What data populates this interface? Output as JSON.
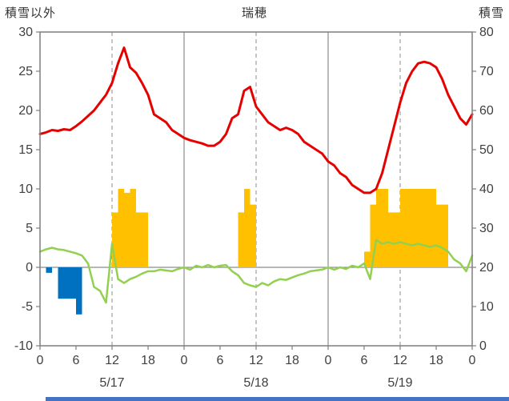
{
  "header": {
    "left_axis_title": "積雪以外",
    "station_title": "瑞穂",
    "right_axis_title": "積雪"
  },
  "chart_data": {
    "type": "line",
    "title": "瑞穂",
    "left_axis": {
      "label": "積雪以外",
      "min": -10,
      "max": 30,
      "ticks": [
        30,
        25,
        20,
        15,
        10,
        5,
        0,
        -5,
        -10
      ]
    },
    "right_axis": {
      "label": "積雪",
      "min": 0,
      "max": 80,
      "ticks": [
        80,
        70,
        60,
        50,
        40,
        30,
        20,
        10,
        0
      ]
    },
    "x_axis": {
      "min": 0,
      "max": 72,
      "tick_hours": [
        0,
        6,
        12,
        18,
        24,
        30,
        36,
        42,
        48,
        54,
        60,
        66,
        72
      ],
      "tick_labels": [
        "0",
        "6",
        "12",
        "18",
        "0",
        "6",
        "12",
        "18",
        "0",
        "6",
        "12",
        "18",
        "0"
      ],
      "day_labels": [
        {
          "label": "5/17",
          "hour": 12
        },
        {
          "label": "5/18",
          "hour": 36
        },
        {
          "label": "5/19",
          "hour": 60
        }
      ]
    },
    "grid": {
      "dashed_vertical_hours": [
        12,
        36,
        60
      ],
      "solid_vertical_hours": [
        24,
        48
      ],
      "zero_line": true
    },
    "colors": {
      "red_line": "#e60000",
      "green_line": "#92d050",
      "yellow_bar": "#ffc000",
      "blue_bar": "#0070c0",
      "grid": "#8c8c8c",
      "frame": "#7f7f7f",
      "text": "#404040",
      "accent_strip": "#4472c4"
    },
    "series": [
      {
        "name": "blue-bars",
        "type": "bar",
        "axis": "left",
        "color": "#0070c0",
        "values": {
          "1": -0.7,
          "3": -4,
          "4": -4,
          "5": -4,
          "6": -6
        }
      },
      {
        "name": "yellow-bars",
        "type": "bar",
        "axis": "left",
        "color": "#ffc000",
        "values": {
          "12": 7,
          "13": 10,
          "14": 9.5,
          "15": 10,
          "16": 7,
          "17": 7,
          "33": 7,
          "34": 10,
          "35": 8,
          "54": 2,
          "55": 8,
          "56": 10,
          "57": 10,
          "58": 7,
          "59": 7,
          "60": 10,
          "61": 10,
          "62": 10,
          "63": 10,
          "64": 10,
          "65": 10,
          "66": 8,
          "67": 8
        }
      },
      {
        "name": "green-line",
        "type": "line",
        "axis": "left",
        "color": "#92d050",
        "width": 2.5,
        "values": [
          2,
          2.3,
          2.5,
          2.3,
          2.2,
          2,
          1.8,
          1.5,
          0.5,
          -2.5,
          -3,
          -4.5,
          3,
          -1.5,
          -2,
          -1.5,
          -1.2,
          -0.8,
          -0.5,
          -0.5,
          -0.3,
          -0.4,
          -0.5,
          -0.2,
          0,
          -0.3,
          0.2,
          0,
          0.3,
          0,
          0.2,
          0.3,
          -0.5,
          -1,
          -2,
          -2.3,
          -2.5,
          -2,
          -2.3,
          -1.8,
          -1.5,
          -1.6,
          -1.3,
          -1,
          -0.8,
          -0.5,
          -0.4,
          -0.3,
          0,
          -0.3,
          0,
          -0.2,
          0.2,
          0,
          0.5,
          -1.5,
          3.5,
          3,
          3.2,
          3,
          3.2,
          3,
          2.8,
          3,
          2.8,
          2.6,
          2.8,
          2.5,
          2,
          1,
          0.5,
          -0.5,
          1.5
        ]
      },
      {
        "name": "red-line",
        "type": "line",
        "axis": "left",
        "color": "#e60000",
        "width": 3,
        "values": [
          17,
          17.2,
          17.5,
          17.4,
          17.6,
          17.5,
          18,
          18.6,
          19.3,
          20,
          21,
          22,
          23.5,
          26,
          28,
          25.5,
          24.8,
          23.5,
          22,
          19.5,
          19,
          18.5,
          17.5,
          17,
          16.5,
          16.2,
          16,
          15.8,
          15.5,
          15.5,
          16,
          17,
          19,
          19.5,
          22.5,
          23,
          20.5,
          19.5,
          18.5,
          18,
          17.5,
          17.8,
          17.5,
          17,
          16,
          15.5,
          15,
          14.5,
          13.5,
          13,
          12,
          11.5,
          10.5,
          10,
          9.5,
          9.5,
          10,
          12,
          15,
          18,
          21,
          23.5,
          25,
          26,
          26.2,
          26,
          25.5,
          24,
          22,
          20.5,
          19,
          18.2,
          19.5
        ]
      }
    ]
  }
}
